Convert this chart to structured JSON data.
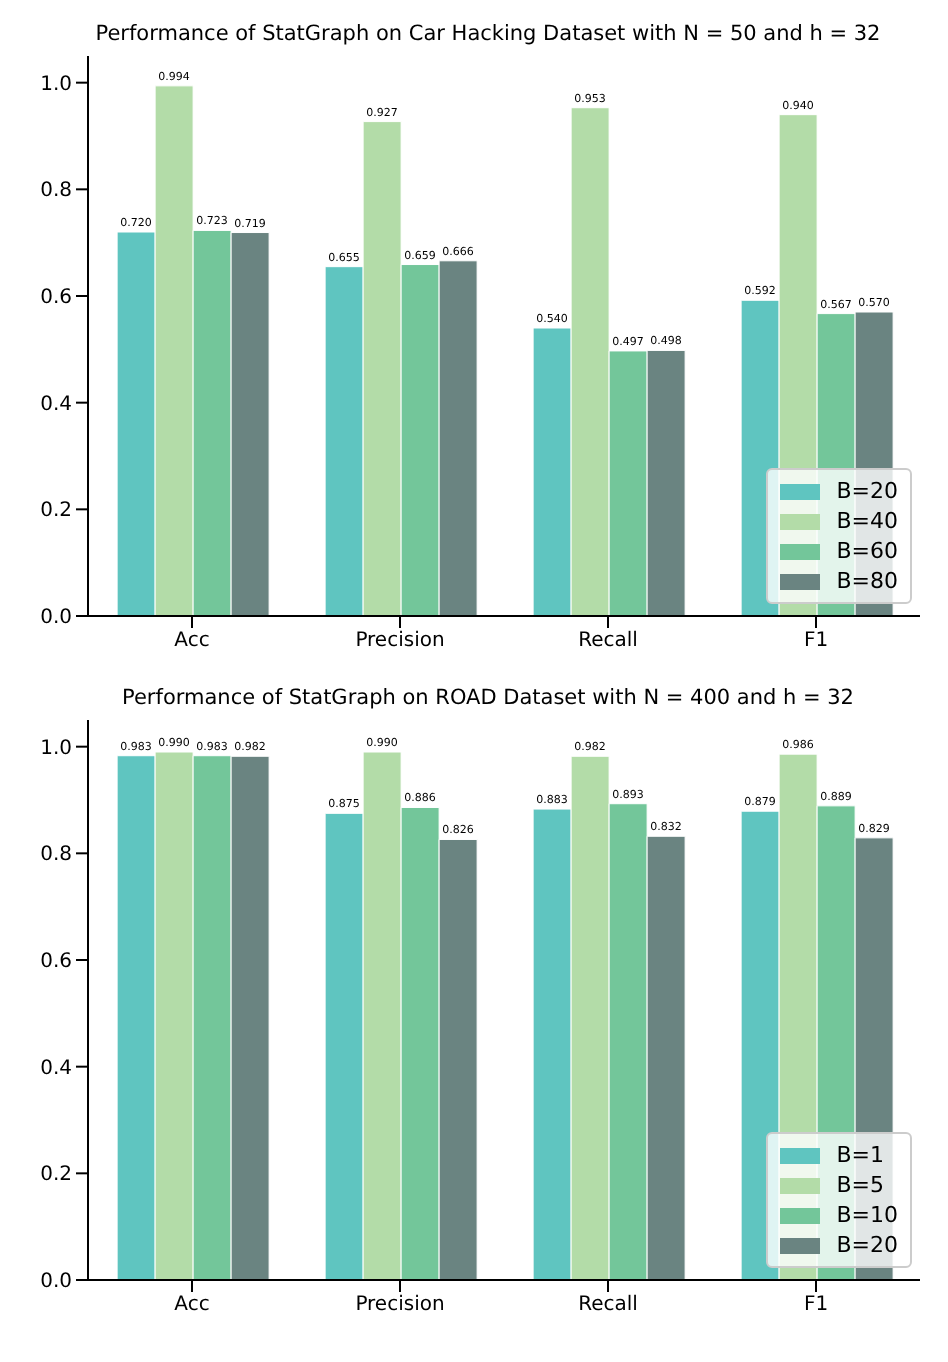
{
  "chart_data": [
    {
      "type": "bar",
      "title": "Performance of StatGraph on Car Hacking Dataset with N = 50 and h = 32",
      "categories": [
        "Acc",
        "Precision",
        "Recall",
        "F1"
      ],
      "series": [
        {
          "name": "B=20",
          "color": "#5fc5c0",
          "values": [
            0.72,
            0.655,
            0.54,
            0.592
          ],
          "value_labels": [
            "0.720",
            "0.655",
            "0.540",
            "0.592"
          ]
        },
        {
          "name": "B=40",
          "color": "#b3dca8",
          "values": [
            0.994,
            0.927,
            0.953,
            0.94
          ],
          "value_labels": [
            "0.994",
            "0.927",
            "0.953",
            "0.940"
          ]
        },
        {
          "name": "B=60",
          "color": "#73c69a",
          "values": [
            0.723,
            0.659,
            0.497,
            0.567
          ],
          "value_labels": [
            "0.723",
            "0.659",
            "0.497",
            "0.567"
          ]
        },
        {
          "name": "B=80",
          "color": "#6a8481",
          "values": [
            0.719,
            0.666,
            0.498,
            0.57
          ],
          "value_labels": [
            "0.719",
            "0.666",
            "0.498",
            "0.570"
          ]
        }
      ],
      "ylim": [
        0,
        1.05
      ],
      "yticks": [
        {
          "value": 0,
          "label": "0.0"
        },
        {
          "value": 0.2,
          "label": "0.2"
        },
        {
          "value": 0.4,
          "label": "0.4"
        },
        {
          "value": 0.6,
          "label": "0.6"
        },
        {
          "value": 0.8,
          "label": "0.8"
        },
        {
          "value": 1,
          "label": "1.0"
        }
      ],
      "legend": "bottom right"
    },
    {
      "type": "bar",
      "title": "Performance of StatGraph on ROAD Dataset with N = 400 and h = 32",
      "categories": [
        "Acc",
        "Precision",
        "Recall",
        "F1"
      ],
      "series": [
        {
          "name": "B=1",
          "color": "#5fc5c0",
          "values": [
            0.983,
            0.875,
            0.883,
            0.879
          ],
          "value_labels": [
            "0.983",
            "0.875",
            "0.883",
            "0.879"
          ]
        },
        {
          "name": "B=5",
          "color": "#b3dca8",
          "values": [
            0.99,
            0.99,
            0.982,
            0.986
          ],
          "value_labels": [
            "0.990",
            "0.990",
            "0.982",
            "0.986"
          ]
        },
        {
          "name": "B=10",
          "color": "#73c69a",
          "values": [
            0.983,
            0.886,
            0.893,
            0.889
          ],
          "value_labels": [
            "0.983",
            "0.886",
            "0.893",
            "0.889"
          ]
        },
        {
          "name": "B=20",
          "color": "#6a8481",
          "values": [
            0.982,
            0.826,
            0.832,
            0.829
          ],
          "value_labels": [
            "0.982",
            "0.826",
            "0.832",
            "0.829"
          ]
        }
      ],
      "ylim": [
        0,
        1.05
      ],
      "yticks": [
        {
          "value": 0,
          "label": "0.0"
        },
        {
          "value": 0.2,
          "label": "0.2"
        },
        {
          "value": 0.4,
          "label": "0.4"
        },
        {
          "value": 0.6,
          "label": "0.6"
        },
        {
          "value": 0.8,
          "label": "0.8"
        },
        {
          "value": 1,
          "label": "1.0"
        }
      ],
      "legend": "bottom right"
    }
  ]
}
